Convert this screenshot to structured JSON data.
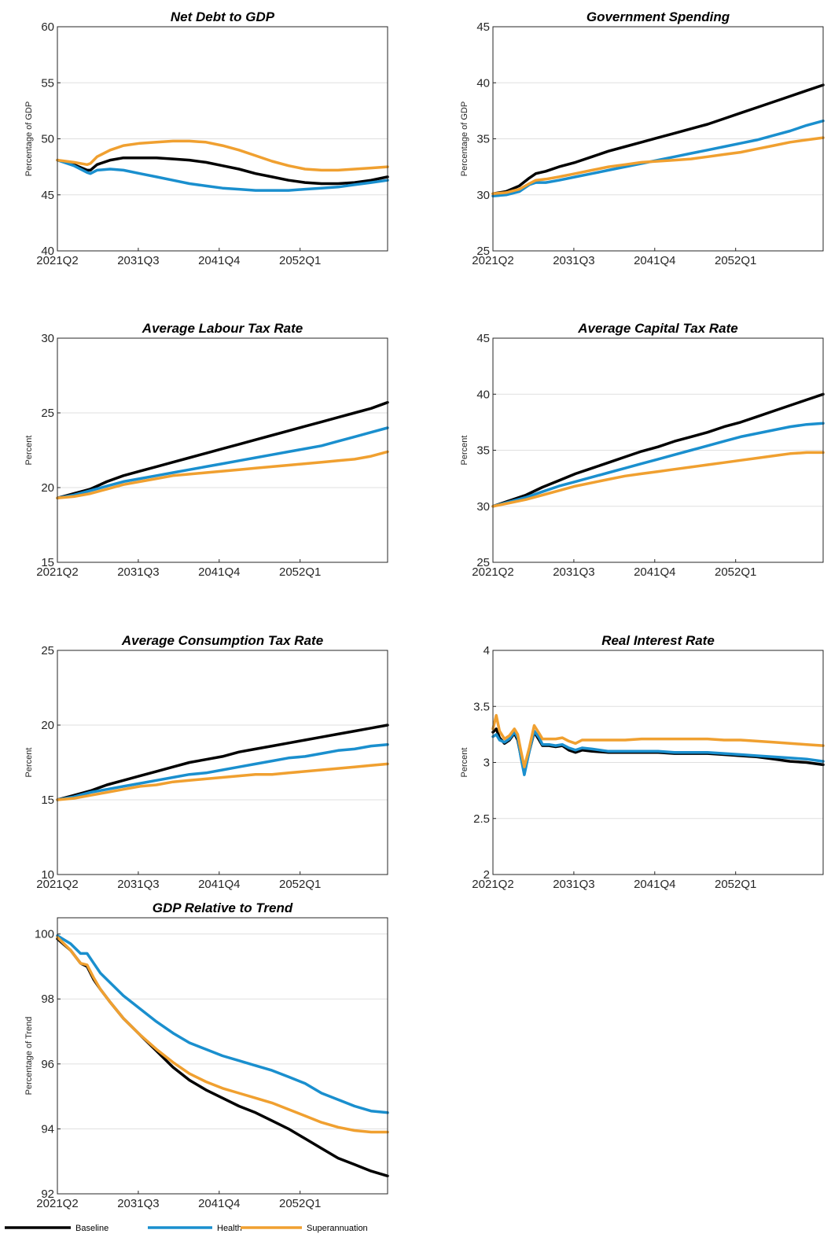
{
  "colors": {
    "Baseline": "#000000",
    "Health": "#1a8fce",
    "Superannuation": "#f0a030"
  },
  "legend": [
    "Baseline",
    "Health",
    "Superannuation"
  ],
  "chart_data": [
    {
      "type": "line",
      "title": "Net Debt to GDP",
      "ylabel": "Percentage of GDP",
      "xlabel": "",
      "ylim": [
        40,
        60
      ],
      "yticks": [
        40,
        45,
        50,
        55,
        60
      ],
      "xlim": [
        0,
        1
      ],
      "xticks": [
        0,
        0.245,
        0.49,
        0.735
      ],
      "xticklabels": [
        "2021Q2",
        "2031Q3",
        "2041Q4",
        "2052Q1"
      ],
      "grid": true,
      "x": [
        0,
        0.05,
        0.09,
        0.1,
        0.12,
        0.16,
        0.2,
        0.25,
        0.3,
        0.35,
        0.4,
        0.45,
        0.5,
        0.55,
        0.6,
        0.65,
        0.7,
        0.75,
        0.8,
        0.85,
        0.9,
        0.95,
        1
      ],
      "series": [
        {
          "name": "Baseline",
          "values": [
            48.1,
            47.7,
            47.2,
            47.2,
            47.7,
            48.1,
            48.3,
            48.3,
            48.3,
            48.2,
            48.1,
            47.9,
            47.6,
            47.3,
            46.9,
            46.6,
            46.3,
            46.1,
            46.0,
            46.0,
            46.1,
            46.3,
            46.6
          ]
        },
        {
          "name": "Health",
          "values": [
            48.1,
            47.6,
            47.0,
            46.9,
            47.2,
            47.3,
            47.2,
            46.9,
            46.6,
            46.3,
            46.0,
            45.8,
            45.6,
            45.5,
            45.4,
            45.4,
            45.4,
            45.5,
            45.6,
            45.7,
            45.9,
            46.1,
            46.3
          ]
        },
        {
          "name": "Superannuation",
          "values": [
            48.1,
            47.9,
            47.7,
            47.8,
            48.4,
            49.0,
            49.4,
            49.6,
            49.7,
            49.8,
            49.8,
            49.7,
            49.4,
            49.0,
            48.5,
            48.0,
            47.6,
            47.3,
            47.2,
            47.2,
            47.3,
            47.4,
            47.5
          ]
        }
      ]
    },
    {
      "type": "line",
      "title": "Government Spending",
      "ylabel": "Percentage of GDP",
      "xlabel": "",
      "ylim": [
        25,
        45
      ],
      "yticks": [
        25,
        30,
        35,
        40,
        45
      ],
      "xlim": [
        0,
        1
      ],
      "xticks": [
        0,
        0.245,
        0.49,
        0.735
      ],
      "xticklabels": [
        "2021Q2",
        "2031Q3",
        "2041Q4",
        "2052Q1"
      ],
      "grid": true,
      "x": [
        0,
        0.04,
        0.08,
        0.11,
        0.13,
        0.16,
        0.2,
        0.25,
        0.3,
        0.35,
        0.4,
        0.45,
        0.5,
        0.55,
        0.6,
        0.65,
        0.7,
        0.75,
        0.8,
        0.85,
        0.9,
        0.95,
        1
      ],
      "series": [
        {
          "name": "Baseline",
          "values": [
            30.1,
            30.3,
            30.8,
            31.5,
            31.9,
            32.1,
            32.5,
            32.9,
            33.4,
            33.9,
            34.3,
            34.7,
            35.1,
            35.5,
            35.9,
            36.3,
            36.8,
            37.3,
            37.8,
            38.3,
            38.8,
            39.3,
            39.8
          ]
        },
        {
          "name": "Health",
          "values": [
            29.9,
            30.0,
            30.3,
            30.9,
            31.1,
            31.1,
            31.3,
            31.6,
            31.9,
            32.2,
            32.5,
            32.8,
            33.1,
            33.4,
            33.7,
            34.0,
            34.3,
            34.6,
            34.9,
            35.3,
            35.7,
            36.2,
            36.6
          ]
        },
        {
          "name": "Superannuation",
          "values": [
            30.1,
            30.2,
            30.5,
            31.0,
            31.3,
            31.4,
            31.6,
            31.9,
            32.2,
            32.5,
            32.7,
            32.9,
            33.0,
            33.1,
            33.2,
            33.4,
            33.6,
            33.8,
            34.1,
            34.4,
            34.7,
            34.9,
            35.1
          ]
        }
      ]
    },
    {
      "type": "line",
      "title": "Average Labour Tax Rate",
      "ylabel": "Percent",
      "xlabel": "",
      "ylim": [
        15,
        30
      ],
      "yticks": [
        15,
        20,
        25,
        30
      ],
      "xlim": [
        0,
        1
      ],
      "xticks": [
        0,
        0.245,
        0.49,
        0.735
      ],
      "xticklabels": [
        "2021Q2",
        "2031Q3",
        "2041Q4",
        "2052Q1"
      ],
      "grid": true,
      "x": [
        0,
        0.05,
        0.1,
        0.15,
        0.2,
        0.25,
        0.3,
        0.35,
        0.4,
        0.45,
        0.5,
        0.55,
        0.6,
        0.65,
        0.7,
        0.75,
        0.8,
        0.85,
        0.9,
        0.95,
        1
      ],
      "series": [
        {
          "name": "Baseline",
          "values": [
            19.3,
            19.6,
            19.9,
            20.4,
            20.8,
            21.1,
            21.4,
            21.7,
            22.0,
            22.3,
            22.6,
            22.9,
            23.2,
            23.5,
            23.8,
            24.1,
            24.4,
            24.7,
            25.0,
            25.3,
            25.7
          ]
        },
        {
          "name": "Health",
          "values": [
            19.3,
            19.5,
            19.8,
            20.1,
            20.4,
            20.6,
            20.8,
            21.0,
            21.2,
            21.4,
            21.6,
            21.8,
            22.0,
            22.2,
            22.4,
            22.6,
            22.8,
            23.1,
            23.4,
            23.7,
            24.0
          ]
        },
        {
          "name": "Superannuation",
          "values": [
            19.3,
            19.4,
            19.6,
            19.9,
            20.2,
            20.4,
            20.6,
            20.8,
            20.9,
            21.0,
            21.1,
            21.2,
            21.3,
            21.4,
            21.5,
            21.6,
            21.7,
            21.8,
            21.9,
            22.1,
            22.4
          ]
        }
      ]
    },
    {
      "type": "line",
      "title": "Average Capital Tax Rate",
      "ylabel": "Percent",
      "xlabel": "",
      "ylim": [
        25,
        45
      ],
      "yticks": [
        25,
        30,
        35,
        40,
        45
      ],
      "xlim": [
        0,
        1
      ],
      "xticks": [
        0,
        0.245,
        0.49,
        0.735
      ],
      "xticklabels": [
        "2021Q2",
        "2031Q3",
        "2041Q4",
        "2052Q1"
      ],
      "grid": true,
      "x": [
        0,
        0.05,
        0.1,
        0.15,
        0.2,
        0.25,
        0.3,
        0.35,
        0.4,
        0.45,
        0.5,
        0.55,
        0.6,
        0.65,
        0.7,
        0.75,
        0.8,
        0.85,
        0.9,
        0.95,
        1
      ],
      "series": [
        {
          "name": "Baseline",
          "values": [
            30.0,
            30.5,
            31.0,
            31.7,
            32.3,
            32.9,
            33.4,
            33.9,
            34.4,
            34.9,
            35.3,
            35.8,
            36.2,
            36.6,
            37.1,
            37.5,
            38.0,
            38.5,
            39.0,
            39.5,
            40.0
          ]
        },
        {
          "name": "Health",
          "values": [
            30.0,
            30.4,
            30.8,
            31.3,
            31.8,
            32.2,
            32.6,
            33.0,
            33.4,
            33.8,
            34.2,
            34.6,
            35.0,
            35.4,
            35.8,
            36.2,
            36.5,
            36.8,
            37.1,
            37.3,
            37.4
          ]
        },
        {
          "name": "Superannuation",
          "values": [
            30.0,
            30.3,
            30.6,
            31.0,
            31.4,
            31.8,
            32.1,
            32.4,
            32.7,
            32.9,
            33.1,
            33.3,
            33.5,
            33.7,
            33.9,
            34.1,
            34.3,
            34.5,
            34.7,
            34.8,
            34.8
          ]
        }
      ]
    },
    {
      "type": "line",
      "title": "Average Consumption Tax Rate",
      "ylabel": "Percent",
      "xlabel": "",
      "ylim": [
        10,
        25
      ],
      "yticks": [
        10,
        15,
        20,
        25
      ],
      "xlim": [
        0,
        1
      ],
      "xticks": [
        0,
        0.245,
        0.49,
        0.735
      ],
      "xticklabels": [
        "2021Q2",
        "2031Q3",
        "2041Q4",
        "2052Q1"
      ],
      "grid": true,
      "x": [
        0,
        0.05,
        0.1,
        0.15,
        0.2,
        0.25,
        0.3,
        0.35,
        0.4,
        0.45,
        0.5,
        0.55,
        0.6,
        0.65,
        0.7,
        0.75,
        0.8,
        0.85,
        0.9,
        0.95,
        1
      ],
      "series": [
        {
          "name": "Baseline",
          "values": [
            15.0,
            15.3,
            15.6,
            16.0,
            16.3,
            16.6,
            16.9,
            17.2,
            17.5,
            17.7,
            17.9,
            18.2,
            18.4,
            18.6,
            18.8,
            19.0,
            19.2,
            19.4,
            19.6,
            19.8,
            20.0
          ]
        },
        {
          "name": "Health",
          "values": [
            15.0,
            15.2,
            15.5,
            15.7,
            15.9,
            16.1,
            16.3,
            16.5,
            16.7,
            16.8,
            17.0,
            17.2,
            17.4,
            17.6,
            17.8,
            17.9,
            18.1,
            18.3,
            18.4,
            18.6,
            18.7
          ]
        },
        {
          "name": "Superannuation",
          "values": [
            15.0,
            15.1,
            15.3,
            15.5,
            15.7,
            15.9,
            16.0,
            16.2,
            16.3,
            16.4,
            16.5,
            16.6,
            16.7,
            16.7,
            16.8,
            16.9,
            17.0,
            17.1,
            17.2,
            17.3,
            17.4
          ]
        }
      ]
    },
    {
      "type": "line",
      "title": "Real Interest Rate",
      "ylabel": "Percent",
      "xlabel": "",
      "ylim": [
        2,
        4
      ],
      "yticks": [
        2,
        2.5,
        3,
        3.5,
        4
      ],
      "xlim": [
        0,
        1
      ],
      "xticks": [
        0,
        0.245,
        0.49,
        0.735
      ],
      "xticklabels": [
        "2021Q2",
        "2031Q3",
        "2041Q4",
        "2052Q1"
      ],
      "grid": true,
      "x": [
        0,
        0.01,
        0.02,
        0.035,
        0.05,
        0.065,
        0.075,
        0.085,
        0.095,
        0.11,
        0.125,
        0.14,
        0.15,
        0.17,
        0.19,
        0.21,
        0.23,
        0.25,
        0.27,
        0.3,
        0.35,
        0.4,
        0.45,
        0.5,
        0.55,
        0.6,
        0.65,
        0.7,
        0.75,
        0.8,
        0.85,
        0.9,
        0.95,
        1
      ],
      "series": [
        {
          "name": "Baseline",
          "values": [
            3.27,
            3.3,
            3.22,
            3.17,
            3.2,
            3.26,
            3.2,
            3.05,
            2.91,
            3.1,
            3.27,
            3.2,
            3.15,
            3.15,
            3.14,
            3.15,
            3.11,
            3.09,
            3.11,
            3.1,
            3.09,
            3.09,
            3.09,
            3.09,
            3.08,
            3.08,
            3.08,
            3.07,
            3.06,
            3.05,
            3.03,
            3.01,
            3.0,
            2.98
          ]
        },
        {
          "name": "Health",
          "values": [
            3.23,
            3.25,
            3.2,
            3.18,
            3.21,
            3.27,
            3.22,
            3.04,
            2.89,
            3.1,
            3.28,
            3.22,
            3.16,
            3.16,
            3.15,
            3.16,
            3.13,
            3.11,
            3.13,
            3.12,
            3.1,
            3.1,
            3.1,
            3.1,
            3.09,
            3.09,
            3.09,
            3.08,
            3.07,
            3.06,
            3.05,
            3.04,
            3.03,
            3.01
          ]
        },
        {
          "name": "Superannuation",
          "values": [
            3.3,
            3.42,
            3.28,
            3.21,
            3.24,
            3.3,
            3.25,
            3.1,
            2.96,
            3.13,
            3.33,
            3.26,
            3.21,
            3.21,
            3.21,
            3.22,
            3.19,
            3.17,
            3.2,
            3.2,
            3.2,
            3.2,
            3.21,
            3.21,
            3.21,
            3.21,
            3.21,
            3.2,
            3.2,
            3.19,
            3.18,
            3.17,
            3.16,
            3.15
          ]
        }
      ]
    },
    {
      "type": "line",
      "title": "GDP Relative to Trend",
      "ylabel": "Percentage of Trend",
      "xlabel": "",
      "ylim": [
        92,
        100.5
      ],
      "yticks": [
        92,
        94,
        96,
        98,
        100
      ],
      "xlim": [
        0,
        1
      ],
      "xticks": [
        0,
        0.245,
        0.49,
        0.735
      ],
      "xticklabels": [
        "2021Q2",
        "2031Q3",
        "2041Q4",
        "2052Q1"
      ],
      "grid": true,
      "x": [
        0,
        0.04,
        0.07,
        0.09,
        0.11,
        0.13,
        0.16,
        0.2,
        0.25,
        0.3,
        0.35,
        0.4,
        0.45,
        0.5,
        0.55,
        0.6,
        0.65,
        0.7,
        0.75,
        0.8,
        0.85,
        0.9,
        0.95,
        1
      ],
      "series": [
        {
          "name": "Baseline",
          "values": [
            99.85,
            99.5,
            99.1,
            99.0,
            98.6,
            98.3,
            97.9,
            97.4,
            96.9,
            96.4,
            95.9,
            95.5,
            95.2,
            94.95,
            94.7,
            94.5,
            94.25,
            94.0,
            93.7,
            93.4,
            93.1,
            92.9,
            92.7,
            92.55
          ]
        },
        {
          "name": "Health",
          "values": [
            99.95,
            99.7,
            99.4,
            99.4,
            99.1,
            98.8,
            98.5,
            98.1,
            97.7,
            97.3,
            96.95,
            96.65,
            96.45,
            96.25,
            96.1,
            95.95,
            95.8,
            95.6,
            95.4,
            95.1,
            94.9,
            94.7,
            94.55,
            94.5
          ]
        },
        {
          "name": "Superannuation",
          "values": [
            99.9,
            99.5,
            99.1,
            99.05,
            98.65,
            98.3,
            97.9,
            97.4,
            96.9,
            96.45,
            96.05,
            95.7,
            95.45,
            95.25,
            95.1,
            94.95,
            94.8,
            94.6,
            94.4,
            94.2,
            94.05,
            93.95,
            93.9,
            93.9
          ]
        }
      ]
    }
  ]
}
